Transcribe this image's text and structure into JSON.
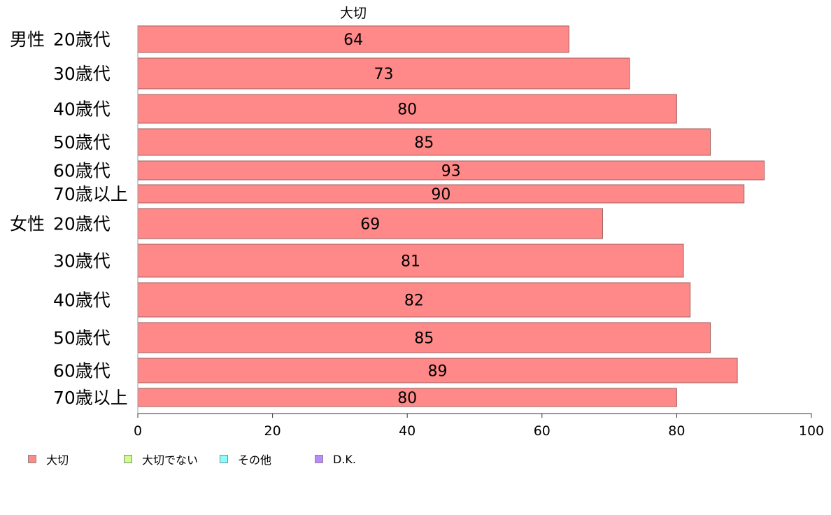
{
  "chart_data": {
    "type": "bar",
    "orientation": "horizontal",
    "stacked": true,
    "series_label_top": "大切",
    "groups": [
      {
        "name": "男性",
        "categories": [
          "20歳代",
          "30歳代",
          "40歳代",
          "50歳代",
          "60歳代",
          "70歳以上"
        ],
        "values": [
          64,
          73,
          80,
          85,
          93,
          90
        ]
      },
      {
        "name": "女性",
        "categories": [
          "20歳代",
          "30歳代",
          "40歳代",
          "50歳代",
          "60歳代",
          "70歳以上"
        ],
        "values": [
          69,
          81,
          82,
          85,
          89,
          80
        ]
      }
    ],
    "series": [
      {
        "name": "大切",
        "color": "#ff8888"
      },
      {
        "name": "大切でない",
        "color": "#ccff88"
      },
      {
        "name": "その他",
        "color": "#88ffff"
      },
      {
        "name": "D.K.",
        "color": "#bb88ff"
      }
    ],
    "xlim": [
      0,
      100
    ],
    "xticks": [
      0,
      20,
      40,
      60,
      80,
      100
    ],
    "grid": false,
    "legend_position": "bottom-left"
  }
}
